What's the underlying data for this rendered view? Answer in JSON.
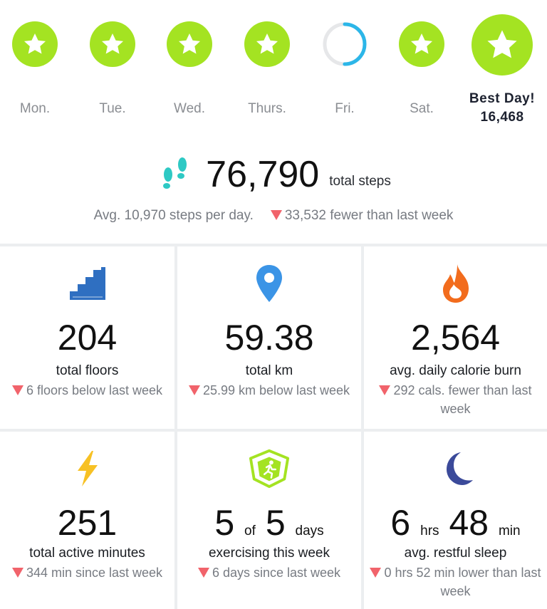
{
  "week": {
    "days": [
      {
        "label": "Mon.",
        "status": "goal-met"
      },
      {
        "label": "Tue.",
        "status": "goal-met"
      },
      {
        "label": "Wed.",
        "status": "goal-met"
      },
      {
        "label": "Thurs.",
        "status": "goal-met"
      },
      {
        "label": "Fri.",
        "status": "in-progress",
        "progress": 0.5
      },
      {
        "label": "Sat.",
        "status": "goal-met"
      }
    ],
    "best_day": {
      "label": "Best Day!",
      "value": "16,468"
    }
  },
  "steps": {
    "total": "76,790",
    "unit": "total steps",
    "average": "Avg. 10,970 steps per day.",
    "change": "33,532 fewer than last week"
  },
  "stats": {
    "floors": {
      "value": "204",
      "label": "total floors",
      "delta": "6 floors below last week",
      "icon": "stairs-icon"
    },
    "distance": {
      "value": "59.38",
      "label": "total km",
      "delta": "25.99 km below last week",
      "icon": "location-pin-icon"
    },
    "calories": {
      "value": "2,564",
      "label": "avg. daily calorie burn",
      "delta": "292 cals. fewer than last week",
      "icon": "flame-icon"
    },
    "active": {
      "value": "251",
      "label": "total active minutes",
      "delta": "344 min since last week",
      "icon": "lightning-bolt-icon"
    },
    "exercise": {
      "value_a": "5",
      "of": "of",
      "value_b": "5",
      "unit": "days",
      "label": "exercising this week",
      "delta": "6 days since last week",
      "icon": "runner-badge-icon"
    },
    "sleep": {
      "hours": "6",
      "hrs": "hrs",
      "minutes": "48",
      "min": "min",
      "label": "avg. restful sleep",
      "delta": "0 hrs 52 min lower than last week",
      "icon": "moon-icon"
    }
  },
  "colors": {
    "goal_green": "#a4e322",
    "progress_blue": "#2cb6e8",
    "decrease_red": "#f1636b"
  }
}
